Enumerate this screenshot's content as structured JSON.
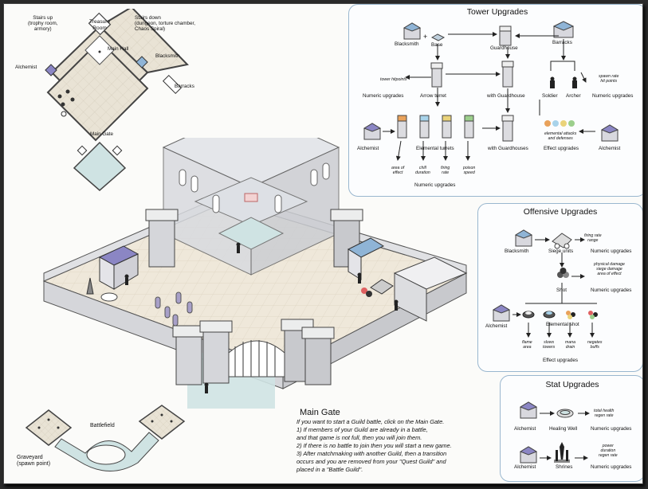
{
  "floor_plan": {
    "stairs_up": "Stairs up\n(trophy room,\narmory)",
    "treasure_room": "Treasure\nRoom",
    "stairs_down": "Stairs down\n(dungeon, torture chamber,\nChaos Spiral)",
    "main_hall": "Main Hall",
    "alchemist": "Alchemist",
    "blacksmith": "Blacksmith",
    "barracks": "Barracks",
    "main_gate": "Main Gate"
  },
  "tower_upgrades": {
    "title": "Tower Upgrades",
    "blacksmith": "Blacksmith",
    "plus": "+",
    "base": "Base",
    "guardhouse": "Guardhouse",
    "barracks": "Barracks",
    "tower_hitpoints": "tower hitpoints",
    "spawn_rate": "spawn rate\nhit points",
    "numeric_upgrades_1": "Numeric upgrades",
    "arrow_turret": "Arrow turret",
    "with_guardhouse": "with Guardhouse",
    "soldier": "Soldier",
    "archer": "Archer",
    "numeric_upgrades_2": "Numeric upgrades",
    "alchemist_left": "Alchemist",
    "elemental_turrets": "Elemental turrets",
    "with_guardhouses": "with Guardhouses",
    "elemental_attacks": "elemental attacks\nand defenses",
    "effect_upgrades": "Effect upgrades",
    "alchemist_right": "Alchemist",
    "area_of_effect": "area of\neffect",
    "chill_duration": "chill\nduration",
    "firing_rate": "firing\nrate",
    "poison_speed": "poison\nspeed",
    "numeric_upgrades_3": "Numeric upgrades"
  },
  "offensive_upgrades": {
    "title": "Offensive Upgrades",
    "blacksmith": "Blacksmith",
    "siege_units": "Siege units",
    "firing_rate_range": "firing rate\nrange",
    "numeric_upgrades_1": "Numeric upgrades",
    "damage_notes": "physical damage\nsiege damage\narea of effect",
    "shot": "Shot",
    "numeric_upgrades_2": "Numeric upgrades",
    "alchemist": "Alchemist",
    "elemental_shot": "Elemental shot",
    "flame_area": "flame\narea",
    "slows_towers": "slows\ntowers",
    "mana_drain": "mana\ndrain",
    "negates_buffs": "negates\nbuffs",
    "effect_upgrades": "Effect upgrades"
  },
  "stat_upgrades": {
    "title": "Stat Upgrades",
    "alchemist_1": "Alchemist",
    "healing_well": "Healing Well",
    "health_notes": "total health\nregen rate",
    "numeric_upgrades_1": "Numeric upgrades",
    "alchemist_2": "Alchemist",
    "shrines": "Shrines",
    "shrine_notes": "power\nduration\nregen rate",
    "numeric_upgrades_2": "Numeric upgrades"
  },
  "battlefield": {
    "battlefield": "Battlefield",
    "graveyard": "Graveyard\n(spawn point)"
  },
  "main_gate_text": {
    "title": "Main Gate",
    "line1": "If you want to start a Guild battle, click on the Main Gate.",
    "line2": "1) If members of your Guild are already in a battle,",
    "line3": "and that game is not full, then you will join them.",
    "line4": "2) If there is no battle to join then you will start a new game.",
    "line5": "3) After matchmaking with another Guild, then a transition",
    "line6": "occurs and you are removed from your \"Quest Guild\" and",
    "line7": "placed in a \"Battle Guild\"."
  },
  "colors": {
    "panel_border": "#9ab7cf",
    "floor": "#e8e2d4",
    "water": "#cfe3e3",
    "wall": "#d9d9dc",
    "roof_purple": "#8b86c4",
    "roof_blue": "#8fb4d6"
  }
}
